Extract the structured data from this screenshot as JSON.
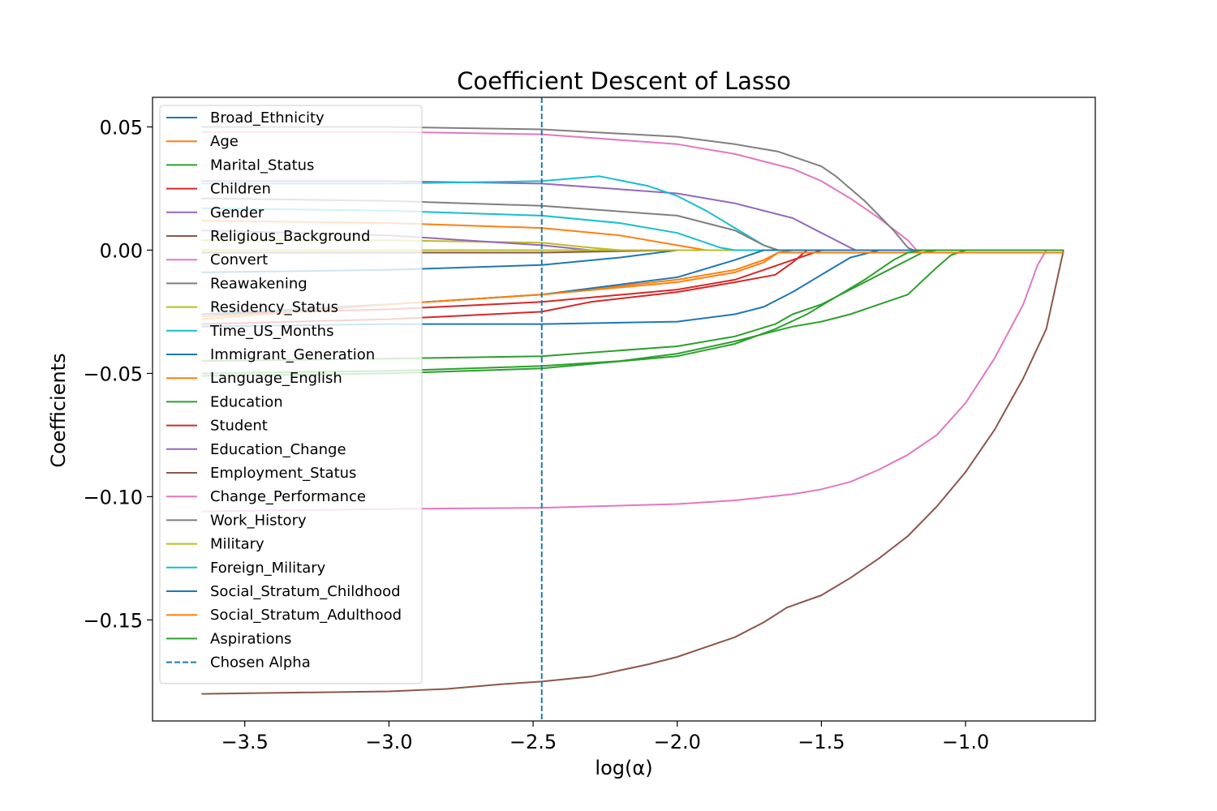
{
  "chart_data": {
    "type": "line",
    "title": "Coefficient Descent of Lasso",
    "xlabel": "log(α)",
    "ylabel": "Coefficients",
    "xlim": [
      -3.82,
      -0.55
    ],
    "ylim": [
      -0.191,
      0.062
    ],
    "xticks": [
      -3.5,
      -3.0,
      -2.5,
      -2.0,
      -1.5,
      -1.0
    ],
    "xtick_labels": [
      "−3.5",
      "−3.0",
      "−2.5",
      "−2.0",
      "−1.5",
      "−1.0"
    ],
    "yticks": [
      0.05,
      0.0,
      -0.05,
      -0.1,
      -0.15
    ],
    "ytick_labels": [
      "0.05",
      "0.00",
      "−0.05",
      "−0.10",
      "−0.15"
    ],
    "grid": false,
    "legend_position": "upper-left",
    "chosen_alpha": {
      "label": "Chosen Alpha",
      "x": -2.47,
      "color": "#1f77b4"
    },
    "series": [
      {
        "name": "Broad_Ethnicity",
        "color": "#1f77b4",
        "x": [
          -3.65,
          -3.0,
          -2.47,
          -2.2,
          -2.0,
          -1.8,
          -1.7,
          -1.65
        ],
        "y": [
          -0.009,
          -0.008,
          -0.006,
          -0.003,
          0.0,
          0.0,
          0.0,
          0.0
        ]
      },
      {
        "name": "Age",
        "color": "#ff7f0e",
        "x": [
          -3.65,
          -3.0,
          -2.47,
          -2.2,
          -2.0,
          -1.9,
          -1.8
        ],
        "y": [
          0.012,
          0.011,
          0.009,
          0.006,
          0.002,
          0.0,
          0.0
        ]
      },
      {
        "name": "Marital_Status",
        "color": "#2ca02c",
        "x": [
          -3.65,
          -3.0,
          -2.47,
          -2.2,
          -2.0,
          -1.8,
          -1.6,
          -1.5,
          -1.4,
          -1.3,
          -1.2,
          -1.1,
          -1.05,
          -1.0
        ],
        "y": [
          -0.05,
          -0.049,
          -0.047,
          -0.045,
          -0.042,
          -0.037,
          -0.031,
          -0.029,
          -0.026,
          -0.022,
          -0.018,
          -0.007,
          -0.002,
          0.0
        ]
      },
      {
        "name": "Children",
        "color": "#d62728",
        "x": [
          -3.65,
          -3.0,
          -2.47,
          -2.3,
          -2.0,
          -1.8,
          -1.66,
          -1.6,
          -1.55
        ],
        "y": [
          -0.03,
          -0.028,
          -0.025,
          -0.021,
          -0.017,
          -0.013,
          -0.01,
          -0.005,
          0.0
        ]
      },
      {
        "name": "Gender",
        "color": "#9467bd",
        "x": [
          -3.65,
          -3.0,
          -2.47,
          -2.0,
          -1.8,
          -1.6,
          -1.5,
          -1.4,
          -1.38
        ],
        "y": [
          0.028,
          0.028,
          0.027,
          0.023,
          0.019,
          0.013,
          0.007,
          0.001,
          0.0
        ]
      },
      {
        "name": "Religious_Background",
        "color": "#8c564b",
        "x": [
          -3.65,
          -3.0,
          -2.47,
          -2.0,
          -1.5
        ],
        "y": [
          -0.001,
          -0.001,
          -0.001,
          0.0,
          0.0
        ]
      },
      {
        "name": "Convert",
        "color": "#e377c2",
        "x": [
          -3.65,
          -3.0,
          -2.47,
          -2.0,
          -1.8,
          -1.6,
          -1.5,
          -1.4,
          -1.3,
          -1.2,
          -1.17
        ],
        "y": [
          0.048,
          0.048,
          0.047,
          0.043,
          0.039,
          0.033,
          0.028,
          0.021,
          0.013,
          0.004,
          0.0
        ]
      },
      {
        "name": "Reawakening",
        "color": "#7f7f7f",
        "x": [
          -3.65,
          -3.0,
          -2.47,
          -2.0,
          -1.8,
          -1.65,
          -1.5,
          -1.45,
          -1.35,
          -1.25,
          -1.2,
          -1.18
        ],
        "y": [
          0.05,
          0.05,
          0.049,
          0.046,
          0.043,
          0.04,
          0.034,
          0.03,
          0.02,
          0.008,
          0.001,
          0.0
        ]
      },
      {
        "name": "Residency_Status",
        "color": "#bcbd22",
        "x": [
          -3.65,
          -3.0,
          -2.47,
          -2.3,
          -2.2,
          -2.1
        ],
        "y": [
          0.004,
          0.004,
          0.003,
          0.001,
          0.0,
          0.0
        ]
      },
      {
        "name": "Time_US_Months",
        "color": "#17becf",
        "x": [
          -3.65,
          -3.0,
          -2.47,
          -2.27,
          -2.1,
          -2.0,
          -1.9,
          -1.8,
          -1.7,
          -1.65
        ],
        "y": [
          0.027,
          0.027,
          0.028,
          0.03,
          0.026,
          0.022,
          0.016,
          0.009,
          0.002,
          0.0
        ]
      },
      {
        "name": "Immigrant_Generation",
        "color": "#1f77b4",
        "x": [
          -3.65,
          -3.0,
          -2.47,
          -2.0,
          -1.8,
          -1.7,
          -1.6,
          -1.5,
          -1.4,
          -1.3,
          -1.25
        ],
        "y": [
          -0.031,
          -0.03,
          -0.03,
          -0.029,
          -0.026,
          -0.023,
          -0.017,
          -0.01,
          -0.003,
          0.0,
          0.0
        ]
      },
      {
        "name": "Language_English",
        "color": "#ff7f0e",
        "x": [
          -3.65,
          -3.0,
          -2.47,
          -2.0,
          -1.8,
          -1.7,
          -1.65,
          -1.6
        ],
        "y": [
          -0.027,
          -0.022,
          -0.018,
          -0.012,
          -0.008,
          -0.004,
          -0.001,
          0.0
        ]
      },
      {
        "name": "Education",
        "color": "#2ca02c",
        "x": [
          -3.65,
          -3.0,
          -2.47,
          -2.0,
          -1.8,
          -1.66,
          -1.6,
          -1.5,
          -1.4,
          -1.3,
          -1.2,
          -1.15,
          -1.1
        ],
        "y": [
          -0.045,
          -0.044,
          -0.043,
          -0.039,
          -0.035,
          -0.03,
          -0.026,
          -0.022,
          -0.016,
          -0.01,
          -0.004,
          -0.001,
          0.0
        ]
      },
      {
        "name": "Student",
        "color": "#d62728",
        "x": [
          -3.65,
          -3.0,
          -2.47,
          -2.0,
          -1.8,
          -1.7,
          -1.6,
          -1.5
        ],
        "y": [
          -0.026,
          -0.024,
          -0.021,
          -0.016,
          -0.012,
          -0.008,
          -0.004,
          0.0
        ]
      },
      {
        "name": "Education_Change",
        "color": "#9467bd",
        "x": [
          -3.65,
          -3.0,
          -2.47,
          -2.3,
          -2.2
        ],
        "y": [
          0.008,
          0.006,
          0.002,
          0.0,
          0.0
        ]
      },
      {
        "name": "Employment_Status",
        "color": "#8c564b",
        "x": [
          -3.65,
          -3.0,
          -2.8,
          -2.6,
          -2.47,
          -2.3,
          -2.1,
          -2.0,
          -1.9,
          -1.8,
          -1.7,
          -1.62,
          -1.5,
          -1.4,
          -1.3,
          -1.2,
          -1.1,
          -1.0,
          -0.9,
          -0.8,
          -0.72,
          -0.66
        ],
        "y": [
          -0.18,
          -0.179,
          -0.178,
          -0.176,
          -0.175,
          -0.173,
          -0.168,
          -0.165,
          -0.161,
          -0.157,
          -0.151,
          -0.145,
          -0.14,
          -0.133,
          -0.125,
          -0.116,
          -0.104,
          -0.09,
          -0.073,
          -0.052,
          -0.032,
          0.0
        ]
      },
      {
        "name": "Change_Performance",
        "color": "#e377c2",
        "x": [
          -3.65,
          -3.0,
          -2.47,
          -2.0,
          -1.8,
          -1.6,
          -1.5,
          -1.4,
          -1.3,
          -1.2,
          -1.1,
          -1.0,
          -0.9,
          -0.8,
          -0.75,
          -0.72
        ],
        "y": [
          -0.106,
          -0.105,
          -0.1045,
          -0.103,
          -0.1015,
          -0.099,
          -0.097,
          -0.094,
          -0.089,
          -0.083,
          -0.075,
          -0.062,
          -0.044,
          -0.022,
          -0.006,
          0.0
        ]
      },
      {
        "name": "Work_History",
        "color": "#7f7f7f",
        "x": [
          -3.65,
          -3.0,
          -2.47,
          -2.0,
          -1.8,
          -1.7,
          -1.65
        ],
        "y": [
          0.021,
          0.02,
          0.018,
          0.014,
          0.008,
          0.002,
          0.0
        ]
      },
      {
        "name": "Military",
        "color": "#bcbd22",
        "x": [
          -3.65,
          -3.0,
          -2.47,
          -2.0
        ],
        "y": [
          0.0,
          0.0,
          0.0,
          0.0
        ]
      },
      {
        "name": "Foreign_Military",
        "color": "#17becf",
        "x": [
          -3.65,
          -3.0,
          -2.47,
          -2.2,
          -2.0,
          -1.85,
          -1.8
        ],
        "y": [
          0.017,
          0.016,
          0.014,
          0.011,
          0.007,
          0.001,
          0.0
        ]
      },
      {
        "name": "Social_Stratum_Childhood",
        "color": "#1f77b4",
        "x": [
          -3.65,
          -3.0,
          -2.47,
          -2.0,
          -1.8,
          -1.7
        ],
        "y": [
          -0.026,
          -0.022,
          -0.018,
          -0.011,
          -0.004,
          0.0
        ]
      },
      {
        "name": "Social_Stratum_Adulthood",
        "color": "#ff7f0e",
        "x": [
          -3.65,
          -3.0,
          -2.47,
          -2.0,
          -1.8,
          -1.7,
          -1.65
        ],
        "y": [
          -0.028,
          -0.022,
          -0.018,
          -0.013,
          -0.009,
          -0.005,
          -0.001
        ]
      },
      {
        "name": "Aspirations",
        "color": "#2ca02c",
        "x": [
          -3.65,
          -3.0,
          -2.47,
          -2.0,
          -1.8,
          -1.66,
          -1.55,
          -1.45,
          -1.35,
          -1.25,
          -1.2,
          -1.15
        ],
        "y": [
          -0.051,
          -0.05,
          -0.048,
          -0.043,
          -0.038,
          -0.032,
          -0.026,
          -0.019,
          -0.012,
          -0.004,
          -0.001,
          0.0
        ]
      }
    ],
    "flat_series_end_x": -0.66
  }
}
